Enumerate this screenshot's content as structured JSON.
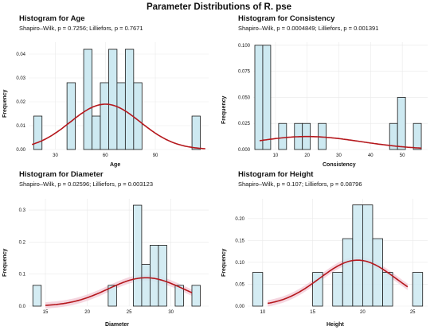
{
  "page_title": "Parameter Distributions of R. pse",
  "charts": [
    {
      "key": "age",
      "title": "Histogram for Age",
      "subtitle": "Shapiro–Wilk, p = 0.7256; Lilliefors, p = 0.7671",
      "xlabel": "Age",
      "ylabel": "Frequency",
      "xlim": [
        14,
        122
      ],
      "ylim": [
        0,
        0.045
      ],
      "xticks": [
        30,
        60,
        90
      ],
      "yticks": [
        0.0,
        0.01,
        0.02,
        0.03,
        0.04
      ],
      "ytick_labels": [
        "0.00",
        "0.01",
        "0.02",
        "0.03",
        "0.04"
      ],
      "xtick_labels": [
        "30",
        "60",
        "90"
      ],
      "bin_width": 5,
      "bins": [
        [
          17,
          22,
          0.014
        ],
        [
          37,
          42,
          0.028
        ],
        [
          47,
          52,
          0.042
        ],
        [
          52,
          57,
          0.014
        ],
        [
          57,
          62,
          0.028
        ],
        [
          62,
          67,
          0.042
        ],
        [
          67,
          72,
          0.028
        ],
        [
          72,
          77,
          0.042
        ],
        [
          77,
          82,
          0.028
        ],
        [
          112,
          117,
          0.014
        ]
      ],
      "curve": {
        "type": "normal",
        "mean": 60,
        "sd": 21,
        "scale": 1
      },
      "show_pink_band": false
    },
    {
      "key": "consistency",
      "title": "Histogram for Consistency",
      "subtitle": "Shapiro–Wilk, p = 0.0004849; Lilliefors, p = 0.001391",
      "xlabel": "Consistency",
      "ylabel": "Frequency",
      "xlim": [
        3,
        58
      ],
      "ylim": [
        0,
        0.103
      ],
      "xticks": [
        10,
        20,
        30,
        40,
        50
      ],
      "yticks": [
        0.0,
        0.025,
        0.05,
        0.075,
        0.1
      ],
      "ytick_labels": [
        "0.000",
        "0.025",
        "0.050",
        "0.075",
        "0.100"
      ],
      "xtick_labels": [
        "10",
        "20",
        "30",
        "40",
        "50"
      ],
      "bin_width": 2.5,
      "bins": [
        [
          3.5,
          6,
          0.1
        ],
        [
          6,
          8.5,
          0.1
        ],
        [
          11,
          13.5,
          0.025
        ],
        [
          16,
          18.5,
          0.025
        ],
        [
          18.5,
          21,
          0.025
        ],
        [
          23.5,
          26,
          0.025
        ],
        [
          46,
          48.5,
          0.025
        ],
        [
          48.5,
          51,
          0.05
        ],
        [
          53.5,
          56,
          0.025
        ]
      ],
      "curve": {
        "type": "normal",
        "mean": 20,
        "sd": 17,
        "scale": 0.53
      },
      "show_pink_band": false
    },
    {
      "key": "diameter",
      "title": "Histogram for Diameter",
      "subtitle": "Shapiro–Wilk, p = 0.02596; Lilliefors, p = 0.003123",
      "xlabel": "Diameter",
      "ylabel": "Frequency",
      "xlim": [
        13,
        34.5
      ],
      "ylim": [
        0,
        0.335
      ],
      "xticks": [
        15,
        20,
        25,
        30
      ],
      "yticks": [
        0.0,
        0.1,
        0.2,
        0.3
      ],
      "ytick_labels": [
        "0.0",
        "0.1",
        "0.2",
        "0.3"
      ],
      "xtick_labels": [
        "15",
        "20",
        "25",
        "30"
      ],
      "bin_width": 1,
      "bins": [
        [
          13.5,
          14.5,
          0.065
        ],
        [
          22.5,
          23.5,
          0.065
        ],
        [
          25.5,
          26.5,
          0.315
        ],
        [
          26.5,
          27.5,
          0.13
        ],
        [
          27.5,
          28.5,
          0.19
        ],
        [
          28.5,
          29.5,
          0.19
        ],
        [
          30.5,
          31.5,
          0.065
        ],
        [
          32.5,
          33.5,
          0.065
        ]
      ],
      "curve": {
        "type": "normal",
        "mean": 27,
        "sd": 4.5,
        "scale": 1
      },
      "show_pink_band": true
    },
    {
      "key": "height",
      "title": "Histogram for Height",
      "subtitle": "Shapiro–Wilk, p = 0.107; Lilliefors, p = 0.08796",
      "xlabel": "Height",
      "ylabel": "Frequency",
      "xlim": [
        8.5,
        26.5
      ],
      "ylim": [
        0,
        0.245
      ],
      "xticks": [
        10,
        15,
        20,
        25
      ],
      "yticks": [
        0.0,
        0.05,
        0.1,
        0.15,
        0.2
      ],
      "ytick_labels": [
        "0.00",
        "0.05",
        "0.10",
        "0.15",
        "0.20"
      ],
      "xtick_labels": [
        "10",
        "15",
        "20",
        "25"
      ],
      "bin_width": 1,
      "bins": [
        [
          9,
          10,
          0.077
        ],
        [
          15,
          16,
          0.077
        ],
        [
          17,
          18,
          0.077
        ],
        [
          18,
          19,
          0.154
        ],
        [
          19,
          20,
          0.231
        ],
        [
          20,
          21,
          0.231
        ],
        [
          21,
          22,
          0.154
        ],
        [
          22,
          23,
          0.077
        ],
        [
          25,
          26,
          0.077
        ]
      ],
      "curve": {
        "type": "normal",
        "mean": 19.5,
        "sd": 3.8,
        "scale": 1
      },
      "show_pink_band": true
    }
  ],
  "colors": {
    "bar_fill": "#cde9f1",
    "bar_stroke": "#1a1a1a",
    "curve": "#b5171c",
    "grid": "#e9e9e9",
    "pink_band": "#f2c8d6",
    "text": "#111111"
  }
}
